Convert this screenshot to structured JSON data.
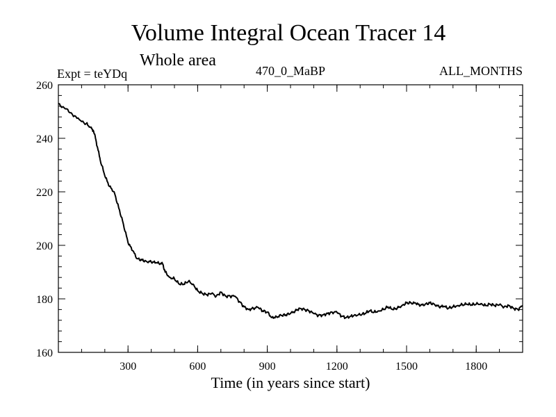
{
  "chart_data": {
    "type": "line",
    "title": "Volume Integral Ocean Tracer 14",
    "subtitle": "Whole area",
    "experiment_label": "Expt = teYDq",
    "period_label": "470_0_MaBP",
    "months_label": "ALL_MONTHS",
    "xlabel": "Time (in years since start)",
    "ylabel": "",
    "xlim": [
      0,
      2000
    ],
    "ylim": [
      160,
      260
    ],
    "x_ticks": [
      300,
      600,
      900,
      1200,
      1500,
      1800
    ],
    "x_tick_labels": [
      "300",
      "600",
      "900",
      "1200",
      "1500",
      "1800"
    ],
    "y_ticks": [
      160,
      180,
      200,
      220,
      240,
      260
    ],
    "y_tick_labels": [
      "160",
      "180",
      "200",
      "220",
      "240",
      "260"
    ],
    "series": [
      {
        "name": "teYDq",
        "color": "#000000",
        "x": [
          0,
          30,
          60,
          90,
          120,
          140,
          150,
          160,
          170,
          180,
          200,
          220,
          240,
          260,
          280,
          300,
          320,
          340,
          360,
          380,
          400,
          420,
          440,
          450,
          460,
          480,
          500,
          520,
          540,
          560,
          580,
          600,
          620,
          640,
          660,
          680,
          700,
          720,
          740,
          760,
          780,
          800,
          820,
          840,
          860,
          880,
          900,
          920,
          940,
          960,
          980,
          1000,
          1020,
          1040,
          1060,
          1080,
          1100,
          1120,
          1140,
          1160,
          1180,
          1200,
          1220,
          1240,
          1260,
          1280,
          1300,
          1320,
          1340,
          1360,
          1380,
          1400,
          1420,
          1440,
          1460,
          1480,
          1500,
          1520,
          1540,
          1560,
          1580,
          1600,
          1620,
          1640,
          1660,
          1680,
          1700,
          1720,
          1740,
          1760,
          1780,
          1800,
          1820,
          1840,
          1860,
          1880,
          1900,
          1920,
          1940,
          1960,
          1980,
          2000
        ],
        "y": [
          253,
          251,
          249,
          247,
          245.5,
          244,
          243,
          240,
          236,
          232,
          226,
          222,
          220,
          214,
          208,
          201,
          198,
          195,
          194.5,
          194,
          193.8,
          193.5,
          193.2,
          193,
          190,
          188,
          187.5,
          185.5,
          185.5,
          186.5,
          185.5,
          183,
          182,
          181.5,
          182,
          181,
          182.5,
          181,
          181,
          181,
          179,
          177,
          176,
          176.5,
          176.8,
          175.5,
          175,
          173,
          173.3,
          173.8,
          174,
          174.5,
          175.5,
          176.5,
          176,
          175.5,
          174.5,
          173.8,
          174,
          174.5,
          175,
          175,
          173.5,
          173,
          173.5,
          174,
          174,
          174.5,
          175.5,
          175,
          175.5,
          176,
          177,
          176,
          176.5,
          177.5,
          178.5,
          178.5,
          178.3,
          177.5,
          178,
          178.5,
          178,
          177,
          177.2,
          176.5,
          177,
          177.5,
          177.8,
          178,
          177.8,
          178,
          178.2,
          177.5,
          178,
          177.5,
          177.8,
          177,
          177.5,
          176.5,
          176,
          177.5
        ]
      }
    ]
  }
}
